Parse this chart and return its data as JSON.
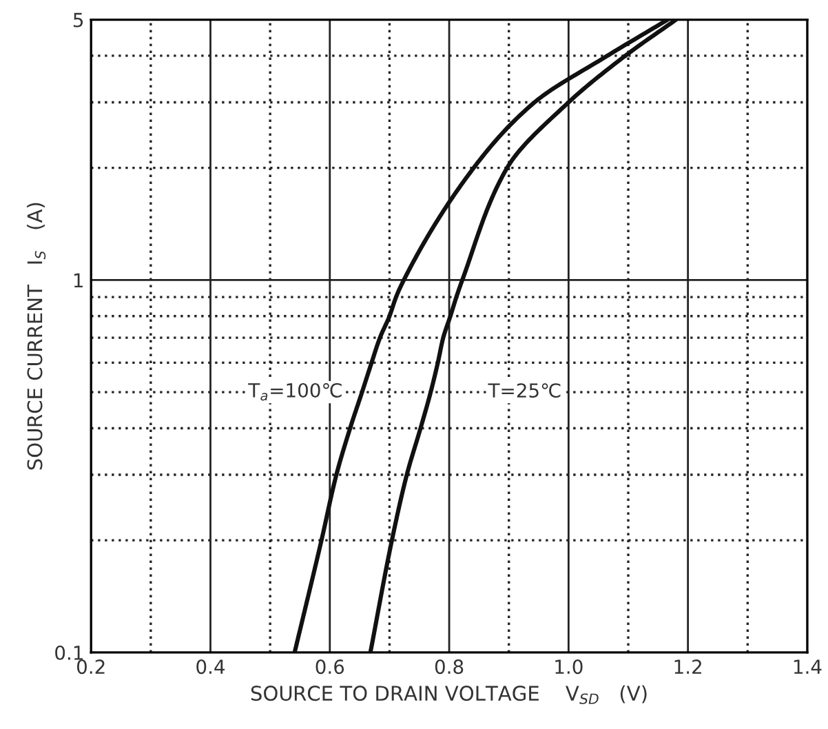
{
  "chart_data": {
    "type": "line",
    "xlabel": "SOURCE TO DRAIN VOLTAGE    V$_{SD}$   (V)",
    "ylabel": "SOURCE CURRENT   I$_{S}$   (A)",
    "log": "y",
    "grid": true,
    "marker": "none",
    "line_style": "solid",
    "xlim": [
      0.2,
      1.4
    ],
    "ylim": [
      0.1,
      5
    ],
    "xticks": [
      0.2,
      {
        "value": 0.3,
        "label": null
      },
      0.4,
      {
        "value": 0.5,
        "label": null
      },
      0.6,
      {
        "value": 0.7,
        "label": null
      },
      0.8,
      {
        "value": 0.9,
        "label": null
      },
      {
        "value": 1.0,
        "label": "1.0"
      },
      {
        "value": 1.1,
        "label": null
      },
      1.2,
      {
        "value": 1.3,
        "label": null
      },
      1.4
    ],
    "yticks": [
      0.1,
      {
        "value": 0.2,
        "label": null
      },
      {
        "value": 0.3,
        "label": null
      },
      {
        "value": 0.4,
        "label": null
      },
      {
        "value": 0.5,
        "label": null
      },
      {
        "value": 0.6,
        "label": null
      },
      {
        "value": 0.7,
        "label": null
      },
      {
        "value": 0.8,
        "label": null
      },
      {
        "value": 0.9,
        "label": null
      },
      1,
      {
        "value": 2,
        "label": null
      },
      {
        "value": 3,
        "label": null
      },
      {
        "value": 4,
        "label": null
      },
      5
    ],
    "series": [
      {
        "name": "T$_{a}$=100℃",
        "color": "#111111",
        "x": [
          0.541,
          0.586,
          0.611,
          0.634,
          0.654,
          0.67,
          0.684,
          0.7,
          0.711,
          0.724,
          0.841,
          0.943,
          1.065,
          1.166
        ],
        "values": [
          0.1,
          0.2,
          0.3,
          0.4,
          0.5,
          0.6,
          0.7,
          0.8,
          0.9,
          1,
          2,
          3,
          4,
          5
        ]
      },
      {
        "name": "T=25℃",
        "color": "#111111",
        "x": [
          0.668,
          0.704,
          0.729,
          0.752,
          0.769,
          0.781,
          0.79,
          0.802,
          0.812,
          0.822,
          0.897,
          1.0,
          1.095,
          1.18
        ],
        "values": [
          0.1,
          0.2,
          0.3,
          0.4,
          0.5,
          0.6,
          0.7,
          0.8,
          0.9,
          1,
          2,
          3,
          4,
          5
        ]
      }
    ]
  }
}
